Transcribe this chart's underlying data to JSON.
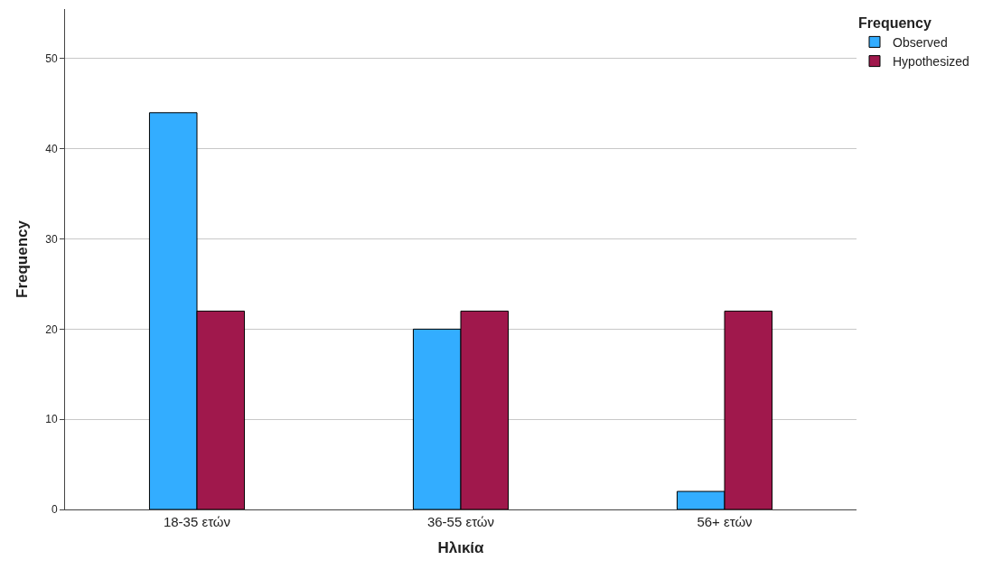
{
  "chart_data": {
    "type": "bar",
    "xlabel": "Ηλικία",
    "ylabel": "Frequency",
    "legend_title": "Frequency",
    "categories": [
      "18-35 ετών",
      "36-55 ετών",
      "56+ ετών"
    ],
    "series": [
      {
        "name": "Observed",
        "color": "#33adff",
        "values": [
          44,
          20,
          2
        ]
      },
      {
        "name": "Hypothesized",
        "color": "#a0184c",
        "values": [
          22,
          22,
          22
        ]
      }
    ],
    "ylim": [
      0,
      55.5
    ],
    "yticks": [
      0,
      10,
      20,
      30,
      40,
      50
    ],
    "grid": "y",
    "legend": "top right"
  }
}
